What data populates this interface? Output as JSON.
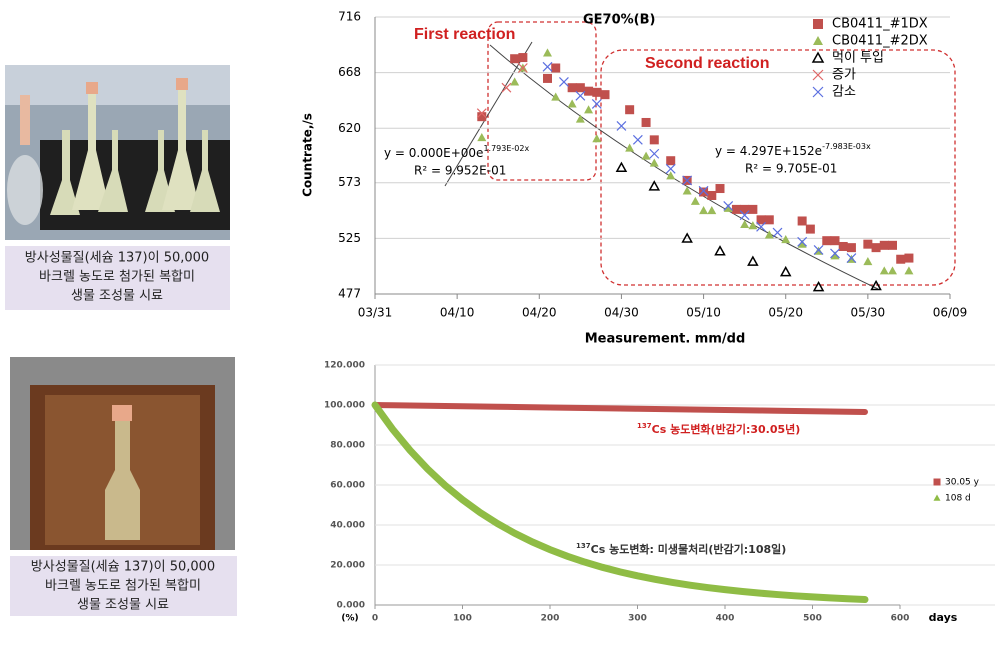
{
  "photos": [
    {
      "caption": [
        "방사성물질(세슘 137)이 50,000",
        "바크렐 농도로 첨가된 복합미",
        "생물 조성물 시료"
      ]
    },
    {
      "caption": [
        "방사성물질(세슘 137)이 50,000",
        "바크렐 농도로 첨가된 복합미",
        "생물 조성물 시료"
      ]
    }
  ],
  "chart_data": [
    {
      "type": "scatter",
      "title": "GE70%(B)",
      "x_label": "Measurement. mm/dd",
      "y_label": "Countrate,/s",
      "xlim": [
        "03/31",
        "06/09"
      ],
      "xticks": [
        "03/31",
        "04/10",
        "04/20",
        "04/30",
        "05/10",
        "05/20",
        "05/30",
        "06/09"
      ],
      "ylim": [
        477,
        716
      ],
      "yticks": [
        477,
        525,
        573,
        620,
        668,
        716
      ],
      "grid": true,
      "legend": "top-right",
      "annotations": [
        "First reaction",
        "Second reaction"
      ],
      "equations": [
        {
          "base": "y = 0.000E+00e",
          "exponent": "1.793E-02x",
          "r2": "R² = 9.952E-01"
        },
        {
          "base": "y = 4.297E+152e",
          "exponent": "-7.983E-03x",
          "r2": "R² = 9.705E-01"
        }
      ],
      "series": [
        {
          "name": "CB0411_#1DX",
          "color": "#c0504d",
          "marker": "square",
          "x": [
            "04/13",
            "04/17",
            "04/18",
            "04/21",
            "04/22",
            "04/24",
            "04/25",
            "04/26",
            "04/27",
            "04/28",
            "05/01",
            "05/03",
            "05/04",
            "05/06",
            "05/08",
            "05/10",
            "05/11",
            "05/12",
            "05/14",
            "05/15",
            "05/16",
            "05/17",
            "05/18",
            "05/22",
            "05/23",
            "05/25",
            "05/26",
            "05/27",
            "05/28",
            "05/30",
            "05/31",
            "06/01",
            "06/02",
            "06/03",
            "06/04"
          ],
          "values": [
            630,
            680,
            681,
            663,
            672,
            655,
            655,
            652,
            651,
            649,
            636,
            625,
            610,
            592,
            575,
            565,
            562,
            568,
            550,
            550,
            550,
            541,
            541,
            540,
            533,
            523,
            523,
            518,
            517,
            520,
            517,
            519,
            519,
            507,
            508
          ]
        },
        {
          "name": "CB0411_#2DX",
          "color": "#9bbb59",
          "marker": "triangle",
          "x": [
            "04/13",
            "04/17",
            "04/18",
            "04/21",
            "04/22",
            "04/24",
            "04/25",
            "04/26",
            "04/27",
            "05/01",
            "05/03",
            "05/04",
            "05/06",
            "05/08",
            "05/09",
            "05/10",
            "05/11",
            "05/13",
            "05/15",
            "05/16",
            "05/18",
            "05/20",
            "05/22",
            "05/24",
            "05/26",
            "05/28",
            "05/30",
            "06/01",
            "06/02",
            "06/04"
          ],
          "values": [
            612,
            660,
            672,
            685,
            647,
            641,
            628,
            636,
            611,
            603,
            596,
            590,
            579,
            566,
            557,
            549,
            549,
            551,
            537,
            536,
            528,
            524,
            520,
            514,
            510,
            507,
            505,
            497,
            497,
            497
          ]
        },
        {
          "name": "먹이 투입",
          "color": "#000000",
          "marker": "open-triangle",
          "x": [
            "04/30",
            "05/04",
            "05/08",
            "05/12",
            "05/16",
            "05/20",
            "05/24",
            "05/31"
          ],
          "values": [
            586,
            570,
            525,
            514,
            505,
            496,
            483,
            484
          ]
        },
        {
          "name": "증가",
          "color": "#e06666",
          "marker": "x",
          "x": [
            "04/13",
            "04/16",
            "04/18"
          ],
          "values": [
            633,
            655,
            672
          ]
        },
        {
          "name": "감소",
          "color": "#5b6fe0",
          "marker": "x",
          "x": [
            "04/21",
            "04/23",
            "04/25",
            "04/27",
            "04/30",
            "05/02",
            "05/04",
            "05/06",
            "05/08",
            "05/10",
            "05/13",
            "05/15",
            "05/17",
            "05/19",
            "05/22",
            "05/24",
            "05/26",
            "05/28"
          ],
          "values": [
            673,
            660,
            648,
            641,
            622,
            610,
            598,
            585,
            575,
            566,
            553,
            545,
            535,
            530,
            522,
            515,
            512,
            508
          ]
        }
      ]
    },
    {
      "type": "line",
      "x_label": "days",
      "y_label": "(%)",
      "xlim": [
        0,
        600
      ],
      "xticks": [
        0,
        100,
        200,
        300,
        400,
        500,
        600
      ],
      "ylim": [
        0,
        120
      ],
      "yticks": [
        {
          "value": 0,
          "label": "0.000"
        },
        {
          "value": 20,
          "label": "20.000"
        },
        {
          "value": 40,
          "label": "40.000"
        },
        {
          "value": 60,
          "label": "60.000"
        },
        {
          "value": 80,
          "label": "80.000"
        },
        {
          "value": 100,
          "label": "100.000"
        },
        {
          "value": 120,
          "label": "120.000"
        }
      ],
      "grid": true,
      "legend": "right",
      "annotations": [
        {
          "superscript": "137",
          "text": "Cs 농도변화(반감기:30.05년)"
        },
        {
          "superscript": "137",
          "text": "Cs 농도변화: 미생물처리(반감기:108일)"
        }
      ],
      "x": [
        0,
        20,
        40,
        60,
        80,
        100,
        120,
        140,
        160,
        180,
        200,
        220,
        240,
        260,
        280,
        300,
        320,
        340,
        360,
        380,
        400,
        420,
        440,
        460,
        480,
        500,
        520,
        540,
        560
      ],
      "series": [
        {
          "name": "30.05 y",
          "color": "#c0504d",
          "marker": "square",
          "values": [
            100,
            99.87,
            99.75,
            99.62,
            99.5,
            99.37,
            99.25,
            99.12,
            98.99,
            98.87,
            98.74,
            98.62,
            98.49,
            98.37,
            98.24,
            98.12,
            97.99,
            97.87,
            97.74,
            97.62,
            97.5,
            97.37,
            97.25,
            97.12,
            97.0,
            96.88,
            96.75,
            96.63,
            96.51
          ]
        },
        {
          "name": "108 d",
          "color": "#8fbc45",
          "marker": "triangle",
          "values": [
            100,
            87.95,
            77.36,
            68.04,
            59.84,
            52.63,
            46.29,
            40.71,
            35.81,
            31.49,
            27.7,
            24.36,
            21.43,
            18.84,
            16.57,
            14.58,
            12.82,
            11.28,
            9.92,
            8.72,
            7.67,
            6.75,
            5.93,
            5.22,
            4.59,
            4.04,
            3.55,
            3.12,
            2.75
          ]
        }
      ]
    }
  ]
}
